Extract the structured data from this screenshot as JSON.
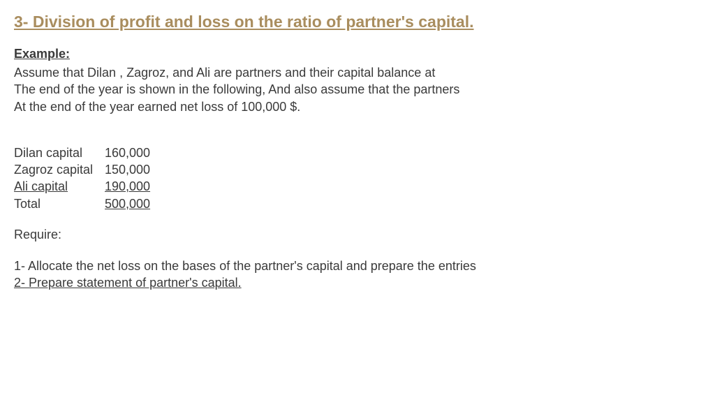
{
  "title": {
    "text": "3- Division of profit and loss on the ratio of partner's capital.",
    "color": "#a98d5e"
  },
  "example_label": "Example:",
  "paragraph": {
    "line1": "Assume that Dilan , Zagroz, and Ali are partners and their capital balance at",
    "line2": "The end of the year is shown in the following, And also assume that the partners",
    "line3": "At the end of the year earned net loss of 100,000 $."
  },
  "capital": {
    "rows": [
      {
        "label": "Dilan capital",
        "value": "160,000"
      },
      {
        "label": "Zagroz capital",
        "value": "150,000"
      },
      {
        "label": "Ali capital",
        "value": "190,000"
      }
    ],
    "total": {
      "label": "Total",
      "value": "500,000"
    }
  },
  "require_label": "Require:",
  "requirements": {
    "item1": "1- Allocate the net loss on the bases of the partner's capital and prepare the entries",
    "item2": "2- Prepare statement of partner's capital."
  },
  "style": {
    "text_color": "#3a3a3a",
    "background": "#ffffff",
    "base_fontsize": 18,
    "title_fontsize": 23
  }
}
